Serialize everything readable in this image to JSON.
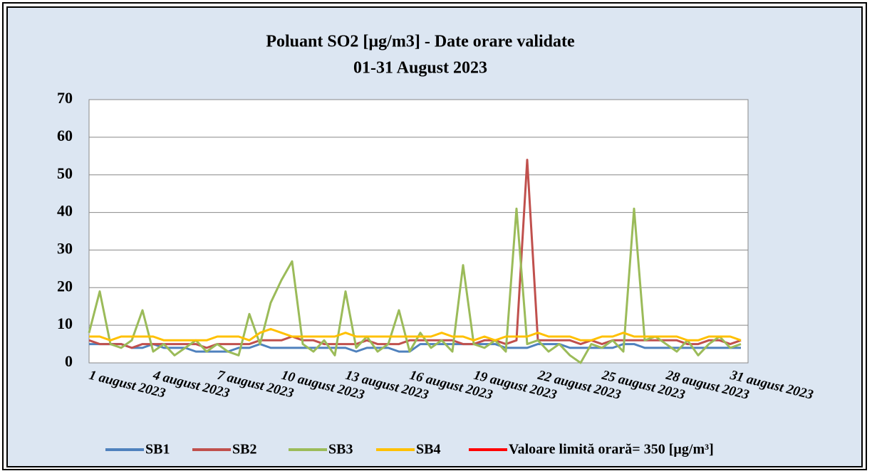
{
  "chart_data": {
    "type": "line",
    "title": "Poluant SO2 [µg/m3] - Date orare validate",
    "subtitle": "01-31 August 2023",
    "categories": [
      "1 august 2023",
      null,
      null,
      null,
      null,
      null,
      "4 august 2023",
      null,
      null,
      null,
      null,
      null,
      "7 august 2023",
      null,
      null,
      null,
      null,
      null,
      "10 august 2023",
      null,
      null,
      null,
      null,
      null,
      "13 august 2023",
      null,
      null,
      null,
      null,
      null,
      "16 august 2023",
      null,
      null,
      null,
      null,
      null,
      "19 august 2023",
      null,
      null,
      null,
      null,
      null,
      "22 august 2023",
      null,
      null,
      null,
      null,
      null,
      "25 august 2023",
      null,
      null,
      null,
      null,
      null,
      "28 august 2023",
      null,
      null,
      null,
      null,
      null,
      "31 august 2023",
      null
    ],
    "series": [
      {
        "name": "SB1",
        "color": "#4f81bd",
        "values": [
          5,
          5,
          5,
          5,
          4,
          4,
          5,
          4,
          4,
          4,
          3,
          3,
          3,
          3,
          4,
          4,
          5,
          4,
          4,
          4,
          4,
          4,
          4,
          4,
          4,
          3,
          4,
          4,
          4,
          3,
          3,
          5,
          5,
          5,
          5,
          5,
          5,
          5,
          5,
          4,
          4,
          4,
          5,
          5,
          5,
          4,
          4,
          4,
          4,
          4,
          5,
          5,
          4,
          4,
          4,
          4,
          4,
          4,
          4,
          4,
          4,
          4
        ]
      },
      {
        "name": "SB2",
        "color": "#c0504d",
        "values": [
          6,
          5,
          5,
          5,
          4,
          5,
          5,
          5,
          5,
          5,
          5,
          4,
          5,
          5,
          5,
          5,
          6,
          6,
          6,
          7,
          6,
          6,
          5,
          5,
          5,
          5,
          6,
          5,
          5,
          5,
          6,
          6,
          6,
          6,
          6,
          5,
          5,
          6,
          6,
          5,
          6,
          54,
          6,
          6,
          6,
          6,
          5,
          6,
          5,
          6,
          6,
          6,
          6,
          6,
          6,
          6,
          5,
          5,
          6,
          6,
          5,
          6
        ]
      },
      {
        "name": "SB3",
        "color": "#9bbb59",
        "values": [
          8,
          19,
          5,
          4,
          6,
          14,
          3,
          5,
          2,
          4,
          6,
          3,
          5,
          3,
          2,
          13,
          5,
          16,
          22,
          27,
          5,
          3,
          6,
          2,
          19,
          4,
          7,
          3,
          5,
          14,
          3,
          8,
          4,
          6,
          3,
          26,
          5,
          4,
          6,
          3,
          41,
          5,
          6,
          3,
          5,
          2,
          0,
          5,
          4,
          6,
          3,
          41,
          6,
          7,
          5,
          3,
          6,
          2,
          5,
          7,
          4,
          5
        ]
      },
      {
        "name": "SB4",
        "color": "#ffc000",
        "values": [
          7,
          7,
          6,
          7,
          7,
          7,
          7,
          6,
          6,
          6,
          6,
          6,
          7,
          7,
          7,
          6,
          8,
          9,
          8,
          7,
          7,
          7,
          7,
          7,
          8,
          7,
          7,
          7,
          7,
          7,
          7,
          7,
          7,
          8,
          7,
          7,
          6,
          7,
          6,
          7,
          7,
          7,
          8,
          7,
          7,
          7,
          6,
          6,
          7,
          7,
          8,
          7,
          7,
          7,
          7,
          7,
          6,
          6,
          7,
          7,
          7,
          6
        ]
      },
      {
        "name": "Valoare limită orară= 350 [µg/m³]",
        "color": "#ff0000",
        "values": [
          null,
          null,
          null,
          null,
          null,
          null,
          null,
          null,
          null,
          null,
          null,
          null,
          null,
          null,
          null,
          null,
          null,
          null,
          null,
          null,
          null,
          null,
          null,
          null,
          null,
          null,
          null,
          null,
          null,
          null,
          null,
          null,
          null,
          null,
          null,
          null,
          null,
          null,
          null,
          null,
          null,
          null,
          null,
          null,
          null,
          null,
          null,
          null,
          null,
          null,
          null,
          null,
          null,
          null,
          null,
          null,
          null,
          null,
          null,
          null,
          null,
          null
        ]
      }
    ],
    "ylim": [
      0,
      70
    ],
    "yticks": [
      0,
      10,
      20,
      30,
      40,
      50,
      60,
      70
    ],
    "grid": true,
    "legend": "bottom"
  }
}
